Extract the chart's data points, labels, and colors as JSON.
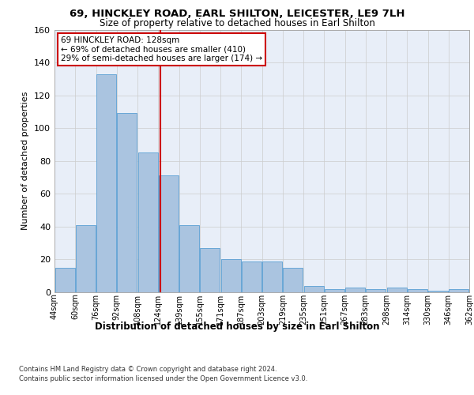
{
  "title_line1": "69, HINCKLEY ROAD, EARL SHILTON, LEICESTER, LE9 7LH",
  "title_line2": "Size of property relative to detached houses in Earl Shilton",
  "xlabel": "Distribution of detached houses by size in Earl Shilton",
  "ylabel": "Number of detached properties",
  "bar_labels": [
    "44sqm",
    "60sqm",
    "76sqm",
    "92sqm",
    "108sqm",
    "124sqm",
    "139sqm",
    "155sqm",
    "171sqm",
    "187sqm",
    "203sqm",
    "219sqm",
    "235sqm",
    "251sqm",
    "267sqm",
    "283sqm",
    "298sqm",
    "314sqm",
    "330sqm",
    "346sqm",
    "362sqm"
  ],
  "bar_values": [
    15,
    41,
    133,
    109,
    85,
    71,
    41,
    27,
    20,
    19,
    19,
    15,
    4,
    2,
    3,
    2,
    3,
    2,
    1,
    2
  ],
  "bar_color": "#aac4e0",
  "bar_edge_color": "#5a9fd4",
  "grid_color": "#cccccc",
  "background_color": "#e8eef8",
  "annotation_text": "69 HINCKLEY ROAD: 128sqm\n← 69% of detached houses are smaller (410)\n29% of semi-detached houses are larger (174) →",
  "vline_x": 4.6,
  "vline_color": "#cc0000",
  "annotation_box_color": "#ffffff",
  "annotation_box_edge": "#cc0000",
  "ylim": [
    0,
    160
  ],
  "yticks": [
    0,
    20,
    40,
    60,
    80,
    100,
    120,
    140,
    160
  ],
  "footer_line1": "Contains HM Land Registry data © Crown copyright and database right 2024.",
  "footer_line2": "Contains public sector information licensed under the Open Government Licence v3.0."
}
